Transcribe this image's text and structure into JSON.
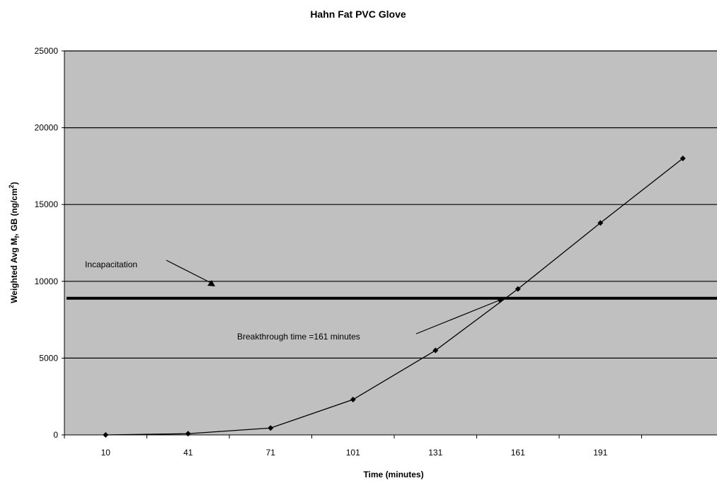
{
  "chart_data": {
    "type": "line",
    "title": "Hahn Fat PVC Glove",
    "xlabel": "Time (minutes)",
    "ylabel": {
      "main": "Weighted Avg M",
      "sub": "f",
      "mid": ", GB (ng/cm",
      "sup": "2",
      "end": ")"
    },
    "categories": [
      "10",
      "41",
      "71",
      "101",
      "131",
      "161",
      "191",
      ""
    ],
    "series": [
      {
        "values": [
          0,
          80,
          450,
          2300,
          5500,
          9500,
          13800,
          18000
        ]
      }
    ],
    "ylim": [
      0,
      25000
    ],
    "yticks": [
      0,
      5000,
      10000,
      15000,
      20000,
      25000
    ],
    "grid": true,
    "incapacitation_level": 8900,
    "annotations": {
      "incapacitation": "Incapacitation",
      "breakthrough": "Breakthrough time =161 minutes"
    },
    "colors": {
      "plot_bg": "#c0c0c0",
      "line": "#000000",
      "grid": "#000000"
    }
  }
}
